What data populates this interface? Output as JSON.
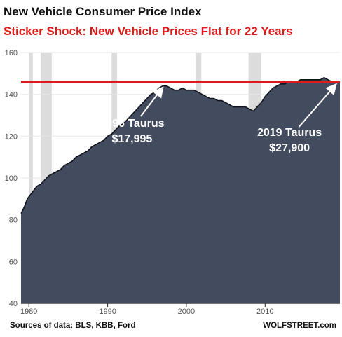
{
  "title": "New Vehicle Consumer Price Index",
  "subtitle": "Sticker Shock: New Vehicle Prices Flat for 22 Years",
  "footer": {
    "sources": "Sources of data: BLS, KBB, Ford",
    "brand": "WOLFSTREET.com"
  },
  "colors": {
    "area": "#434b5e",
    "line": "#10131c",
    "recession": "#dcdcdc",
    "reference": "#e01a1a",
    "annotation": "#ffffff"
  },
  "chart_data": {
    "type": "area",
    "title": "New Vehicle Consumer Price Index",
    "subtitle": "Sticker Shock: New Vehicle Prices Flat for 22 Years",
    "xlim": [
      1979,
      2019.5
    ],
    "ylim": [
      40,
      160
    ],
    "x_ticks": [
      1980,
      1990,
      2000,
      2010
    ],
    "y_ticks": [
      40,
      60,
      80,
      100,
      120,
      140,
      160
    ],
    "grid": true,
    "recessions": [
      [
        1980.0,
        1980.5
      ],
      [
        1981.5,
        1982.9
      ],
      [
        1990.5,
        1991.2
      ],
      [
        2001.2,
        2001.9
      ],
      [
        2007.9,
        2009.5
      ]
    ],
    "reference_line": 146,
    "series": [
      {
        "x": [
          1979.0,
          1979.4,
          1979.8,
          1980.2,
          1980.6,
          1981.0,
          1981.5,
          1982.0,
          1982.5,
          1983.0,
          1983.5,
          1984.0,
          1984.5,
          1985.0,
          1985.5,
          1986.0,
          1986.5,
          1987.0,
          1987.5,
          1988.0,
          1988.5,
          1989.0,
          1989.5,
          1990.0,
          1990.5,
          1991.0,
          1991.5,
          1992.0,
          1992.5,
          1993.0,
          1993.5,
          1994.0,
          1994.5,
          1995.0,
          1995.5,
          1996.0,
          1996.5,
          1997.0,
          1997.5,
          1998.0,
          1998.5,
          1999.0,
          1999.5,
          2000.0,
          2000.5,
          2001.0,
          2001.5,
          2002.0,
          2002.5,
          2003.0,
          2003.5,
          2004.0,
          2004.5,
          2005.0,
          2005.5,
          2006.0,
          2006.5,
          2007.0,
          2007.5,
          2008.0,
          2008.5,
          2009.0,
          2009.5,
          2010.0,
          2010.5,
          2011.0,
          2011.5,
          2012.0,
          2012.5,
          2013.0,
          2013.5,
          2014.0,
          2014.5,
          2015.0,
          2015.5,
          2016.0,
          2016.5,
          2017.0,
          2017.5,
          2018.0,
          2018.5,
          2019.0,
          2019.5
        ],
        "values": [
          83,
          86,
          90,
          92,
          94,
          96,
          97,
          99,
          101,
          102,
          103,
          104,
          106,
          107,
          108,
          110,
          111,
          112,
          113,
          115,
          116,
          117,
          118,
          120,
          121,
          123,
          125,
          126,
          128,
          130,
          132,
          134,
          136,
          138,
          140,
          141,
          143,
          144,
          144,
          143,
          142,
          142,
          143,
          142,
          142,
          142,
          141,
          140,
          139,
          138,
          138,
          137,
          137,
          136,
          135,
          134,
          134,
          134,
          134,
          133,
          132,
          134,
          136,
          139,
          141,
          143,
          144,
          145,
          145,
          146,
          146,
          146,
          147,
          147,
          147,
          147,
          147,
          147,
          148,
          147,
          146,
          146,
          146
        ]
      }
    ],
    "annotations": [
      {
        "label1": "1996 Taurus",
        "label2": "$17,995",
        "point": [
          1996.9,
          144.5
        ]
      },
      {
        "label1": "2019 Taurus",
        "label2": "$27,900",
        "point": [
          2018.9,
          146
        ]
      }
    ]
  }
}
